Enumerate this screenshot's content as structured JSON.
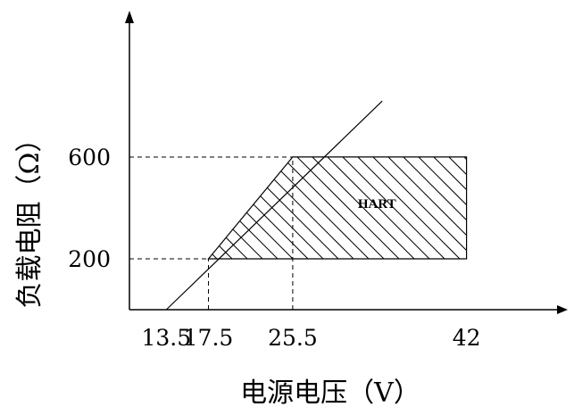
{
  "chart_data": {
    "type": "area",
    "xlabel": "电源电压（V）",
    "ylabel": "负载电阻（Ω）",
    "x_ticks": [
      "13.5",
      "17.5",
      "25.5",
      "42"
    ],
    "y_ticks": [
      "600",
      "200"
    ],
    "xlim": [
      10,
      48
    ],
    "ylim": [
      0,
      860
    ],
    "boundary_line": {
      "x": [
        13.5,
        34
      ],
      "y": [
        0,
        820
      ]
    },
    "operating_region": {
      "label": "HART",
      "vertices": [
        [
          17.5,
          200
        ],
        [
          42,
          200
        ],
        [
          42,
          600
        ],
        [
          25.5,
          600
        ]
      ],
      "fill": "hatched"
    },
    "reference_lines": [
      {
        "y": 600,
        "x_to": 25.5,
        "style": "dashed"
      },
      {
        "y": 200,
        "x_to": 17.5,
        "style": "dashed"
      },
      {
        "x": 17.5,
        "y_to": 200,
        "style": "dashed"
      },
      {
        "x": 25.5,
        "y_to": 600,
        "style": "dashed"
      }
    ],
    "grid": false,
    "colors": {
      "line": "#000000",
      "background": "#ffffff"
    }
  }
}
